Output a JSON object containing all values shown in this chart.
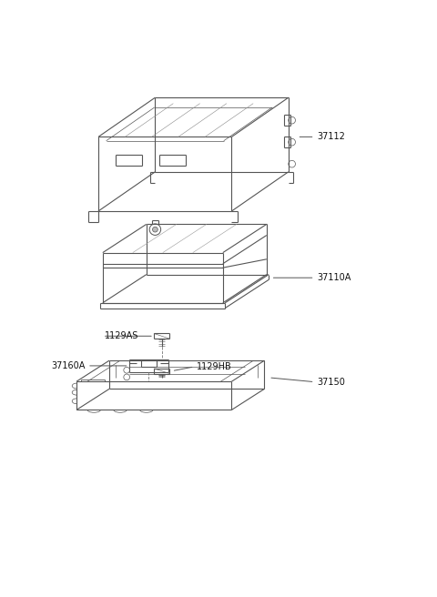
{
  "background_color": "#ffffff",
  "fig_width": 4.8,
  "fig_height": 6.56,
  "dpi": 100,
  "line_color": "#555555",
  "line_width": 0.8,
  "label_fontsize": 7.0,
  "label_color": "#111111",
  "parts": {
    "37112": {
      "label": "37112"
    },
    "37110A": {
      "label": "37110A"
    },
    "1129AS": {
      "label": "1129AS"
    },
    "37160A": {
      "label": "37160A"
    },
    "1129HB": {
      "label": "1129HB"
    },
    "37150": {
      "label": "37150"
    }
  }
}
